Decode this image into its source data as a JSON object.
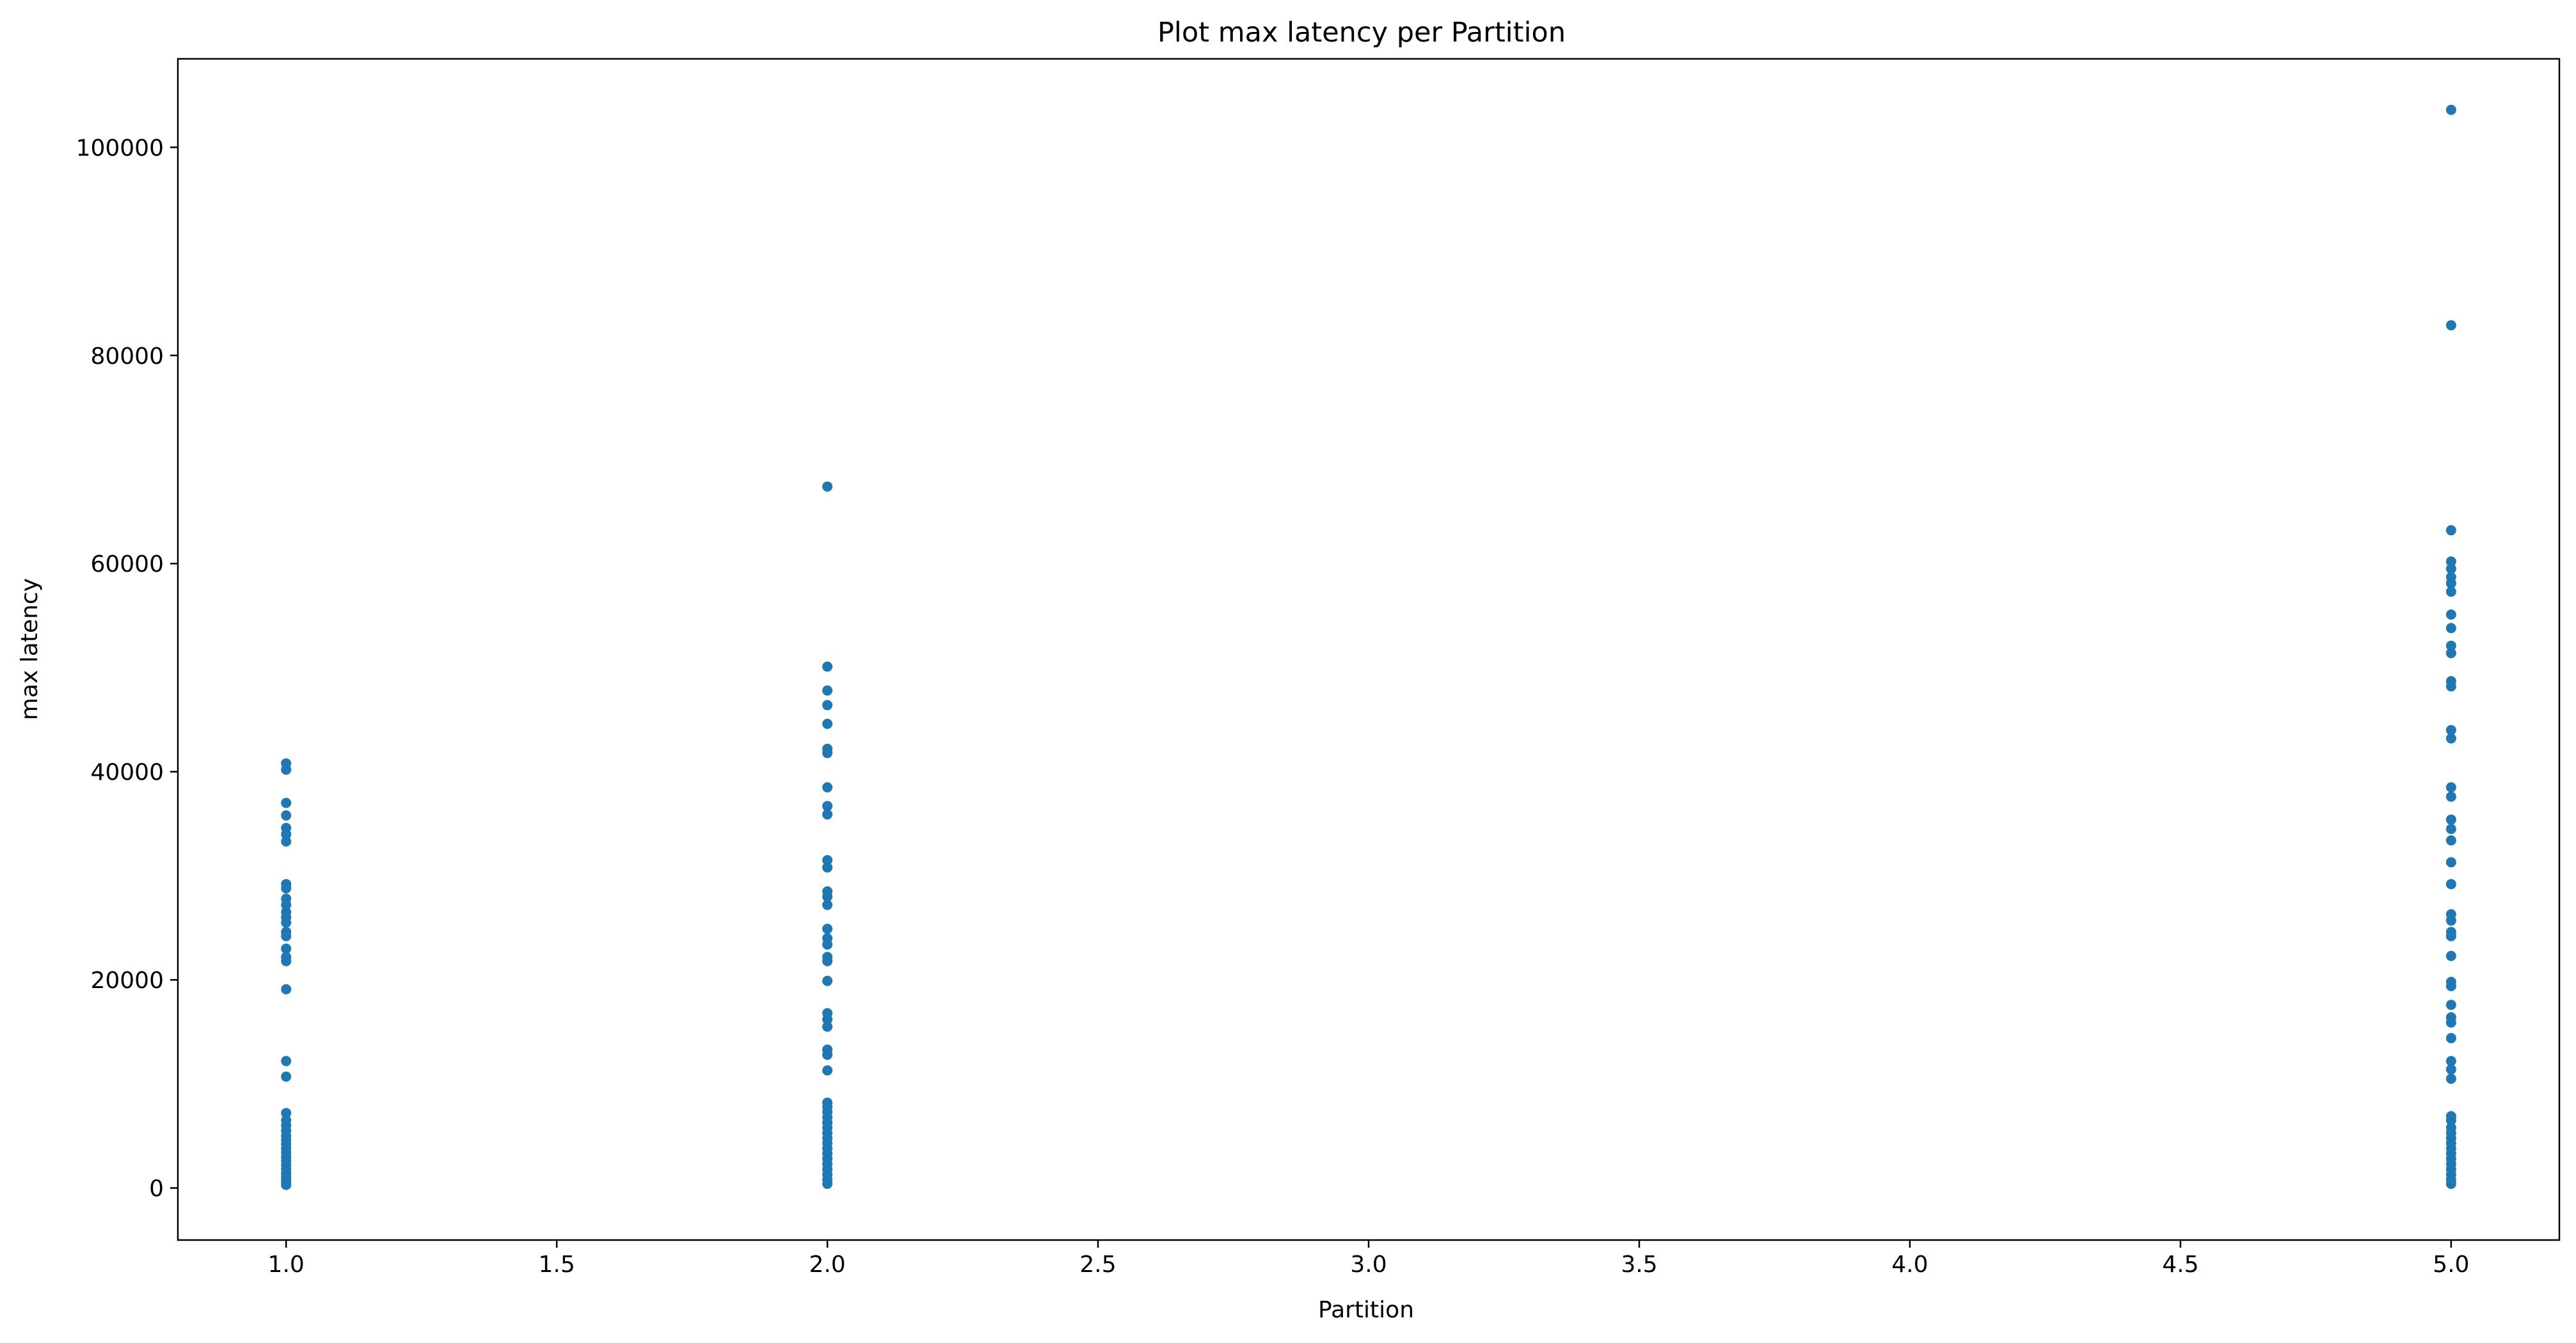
{
  "colors": {
    "marker": "#1f77b4",
    "axis": "#000000",
    "background": "#ffffff"
  },
  "chart_data": {
    "type": "scatter",
    "title": "Plot max latency per Partition",
    "xlabel": "Partition",
    "ylabel": "max latency",
    "xlim": [
      0.8,
      5.2
    ],
    "ylim": [
      -5000,
      108500
    ],
    "grid": false,
    "legend": "none",
    "xticks": [
      1.0,
      1.5,
      2.0,
      2.5,
      3.0,
      3.5,
      4.0,
      4.5,
      5.0
    ],
    "xtick_labels": [
      "1.0",
      "1.5",
      "2.0",
      "2.5",
      "3.0",
      "3.5",
      "4.0",
      "4.5",
      "5.0"
    ],
    "yticks": [
      0,
      20000,
      40000,
      60000,
      80000,
      100000
    ],
    "ytick_labels": [
      "0",
      "20000",
      "40000",
      "60000",
      "80000",
      "100000"
    ],
    "series": [
      {
        "x": 1.0,
        "values": [
          40800,
          40200,
          37000,
          35800,
          34600,
          34000,
          33300,
          29200,
          28800,
          27800,
          27200,
          26500,
          26000,
          25500,
          24600,
          24200,
          23000,
          22200,
          21800,
          19100,
          12200,
          10700,
          7200,
          6500,
          6000,
          5500,
          5000,
          4600,
          4200,
          3800,
          3400,
          3000,
          2600,
          2200,
          1800,
          1400,
          1100,
          800,
          500,
          300
        ]
      },
      {
        "x": 2.0,
        "values": [
          67400,
          50100,
          47800,
          46400,
          44600,
          42200,
          41800,
          38500,
          36700,
          35900,
          31500,
          30800,
          28500,
          28000,
          27200,
          24900,
          24000,
          23400,
          22200,
          21800,
          19900,
          16800,
          16200,
          15500,
          13300,
          12800,
          11300,
          8200,
          7800,
          7300,
          6800,
          6300,
          5800,
          5300,
          4800,
          4300,
          3800,
          3300,
          2800,
          2300,
          1800,
          1300,
          800,
          400
        ]
      },
      {
        "x": 5.0,
        "values": [
          103600,
          82900,
          63200,
          60200,
          59500,
          58700,
          58100,
          57300,
          55100,
          53800,
          52100,
          51400,
          48700,
          48200,
          44000,
          43200,
          38500,
          37600,
          35400,
          34500,
          33400,
          31300,
          29200,
          26300,
          25700,
          24600,
          24200,
          22300,
          19800,
          19400,
          17600,
          16400,
          15900,
          14400,
          12200,
          11400,
          10500,
          6900,
          6500,
          5800,
          5300,
          4800,
          4300,
          3800,
          3300,
          2800,
          2300,
          1800,
          1300,
          800,
          400
        ]
      }
    ]
  }
}
